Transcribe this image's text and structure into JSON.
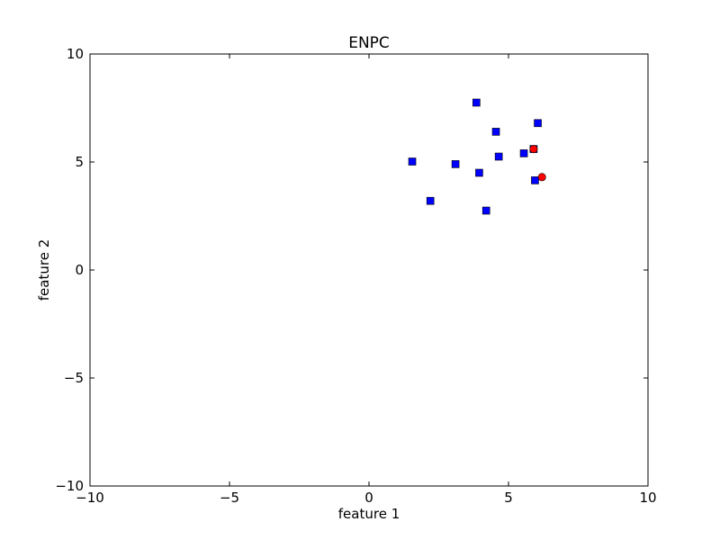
{
  "chart_data": {
    "type": "scatter",
    "title": "ENPC",
    "xlabel": "feature 1",
    "ylabel": "feature 2",
    "xlim": [
      -10,
      10
    ],
    "ylim": [
      -10,
      10
    ],
    "xticks": [
      -10,
      -5,
      0,
      5,
      10
    ],
    "yticks": [
      -10,
      -5,
      0,
      5,
      10
    ],
    "xtick_labels": [
      "−10",
      "−5",
      "0",
      "5",
      "10"
    ],
    "ytick_labels": [
      "−10",
      "−5",
      "0",
      "5",
      "10"
    ],
    "grid": false,
    "series": [
      {
        "marker": "square",
        "color": "#0000ff",
        "points": [
          [
            3.85,
            7.75
          ],
          [
            6.05,
            6.8
          ],
          [
            4.55,
            6.4
          ],
          [
            5.9,
            5.6
          ],
          [
            5.55,
            5.4
          ],
          [
            1.55,
            5.02
          ],
          [
            4.65,
            5.25
          ],
          [
            3.1,
            4.9
          ],
          [
            3.95,
            4.5
          ],
          [
            5.95,
            4.15
          ],
          [
            2.2,
            3.2
          ],
          [
            4.2,
            2.75
          ]
        ]
      },
      {
        "marker": "circle",
        "color": "#ff0000",
        "points": [
          [
            5.9,
            5.6
          ],
          [
            6.2,
            4.3
          ]
        ]
      }
    ]
  }
}
